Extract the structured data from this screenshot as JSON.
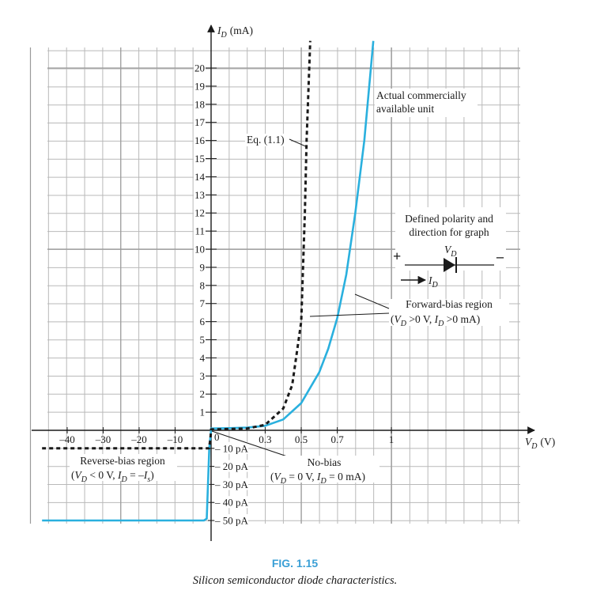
{
  "figure": {
    "number": "FIG. 1.15",
    "caption": "Silicon semiconductor diode characteristics."
  },
  "colors": {
    "actual_curve": "#2ab0de",
    "ideal_curve": "#1a1a1a",
    "grid": "#b9b9b9",
    "axis": "#1a1a1a",
    "caption_label": "#3a9fd6"
  },
  "chart_data": {
    "type": "line",
    "grid": true,
    "x_axis": {
      "label_main": "V",
      "label_sub": "D",
      "label_unit": "(V)",
      "positive_ticks": [
        {
          "value": 0.3,
          "label": "0.3"
        },
        {
          "value": 0.5,
          "label": "0.5"
        },
        {
          "value": 0.7,
          "label": "0.7"
        },
        {
          "value": 1.0,
          "label": "1"
        }
      ],
      "negative_ticks": [
        {
          "value": -40,
          "label": "–40"
        },
        {
          "value": -30,
          "label": "–30"
        },
        {
          "value": -20,
          "label": "–20"
        },
        {
          "value": -10,
          "label": "–10"
        }
      ],
      "origin_label": "0",
      "note": "broken scale: volts on the forward side, tens of volts on the reverse side"
    },
    "y_axis": {
      "label_main": "I",
      "label_sub": "D",
      "label_unit": "(mA)",
      "positive_ticks": [
        1,
        2,
        3,
        4,
        5,
        6,
        7,
        8,
        9,
        10,
        11,
        12,
        13,
        14,
        15,
        16,
        17,
        18,
        19,
        20
      ],
      "positive_unit": "mA",
      "negative_ticks": [
        {
          "value": -10,
          "label": "10 pA"
        },
        {
          "value": -20,
          "label": "20 pA"
        },
        {
          "value": -30,
          "label": "30 pA"
        },
        {
          "value": -40,
          "label": "40 pA"
        },
        {
          "value": -50,
          "label": "50 pA"
        }
      ],
      "negative_unit": "pA"
    },
    "series": [
      {
        "name": "Actual commercially available unit",
        "style": "solid",
        "forward": [
          [
            0,
            0.1
          ],
          [
            0.1,
            0.12
          ],
          [
            0.2,
            0.15
          ],
          [
            0.3,
            0.25
          ],
          [
            0.4,
            0.6
          ],
          [
            0.5,
            1.5
          ],
          [
            0.6,
            3.2
          ],
          [
            0.65,
            4.5
          ],
          [
            0.7,
            6.2
          ],
          [
            0.75,
            8.6
          ],
          [
            0.8,
            12
          ],
          [
            0.85,
            16
          ],
          [
            0.9,
            21.5
          ]
        ],
        "reverse_pA": [
          [
            -47,
            -50
          ],
          [
            -2,
            -50
          ],
          [
            -1.2,
            -49
          ],
          [
            -0.5,
            -10
          ],
          [
            0,
            0
          ]
        ]
      },
      {
        "name": "Eq. (1.1)",
        "style": "dashed",
        "forward": [
          [
            0,
            0.05
          ],
          [
            0.2,
            0.1
          ],
          [
            0.3,
            0.3
          ],
          [
            0.4,
            1.2
          ],
          [
            0.45,
            2.5
          ],
          [
            0.5,
            6
          ],
          [
            0.52,
            12
          ],
          [
            0.53,
            16
          ],
          [
            0.55,
            21.5
          ]
        ],
        "reverse_pA": [
          [
            -47,
            -10
          ],
          [
            -0.6,
            -10
          ],
          [
            -0.2,
            -5
          ],
          [
            0,
            0
          ]
        ]
      }
    ],
    "annotations": {
      "eq_label": "Eq. (1.1)",
      "actual_label_line1": "Actual commercially",
      "actual_label_line2": "available unit",
      "polarity_line1": "Defined polarity and",
      "polarity_line2": "direction for graph",
      "plus": "+",
      "minus": "–",
      "forward_region_line1": "Forward-bias region",
      "forward_region_cond1": "V",
      "forward_region_cond1_sub": "D",
      "forward_region_cond1_rest": " >0 V, ",
      "forward_region_cond2": "I",
      "forward_region_cond2_sub": "D",
      "forward_region_cond2_rest": " >0 mA)",
      "reverse_region_line1": "Reverse-bias region",
      "reverse_cond_a": "V",
      "reverse_cond_a_sub": "D",
      "reverse_cond_a_rest": " < 0 V, ",
      "reverse_cond_b": "I",
      "reverse_cond_b_sub": "D",
      "reverse_cond_b_rest": " = –",
      "reverse_cond_c": "I",
      "reverse_cond_c_sub": "s",
      "nobias_line1": "No-bias",
      "nobias_cond_a": "V",
      "nobias_cond_a_sub": "D",
      "nobias_cond_a_rest": " = 0 V, ",
      "nobias_cond_b": "I",
      "nobias_cond_b_sub": "D",
      "nobias_cond_b_rest": " = 0 mA)"
    }
  }
}
